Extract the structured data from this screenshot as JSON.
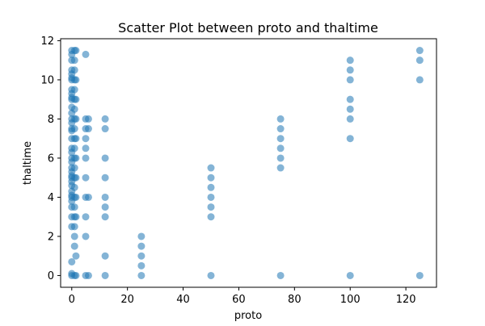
{
  "chart_data": {
    "type": "scatter",
    "title": "Scatter Plot between proto and thaltime",
    "xlabel": "proto",
    "ylabel": "thaltime",
    "xlim": [
      -4,
      131
    ],
    "ylim": [
      -0.6,
      12.1
    ],
    "xticks": [
      0,
      20,
      40,
      60,
      80,
      100,
      120
    ],
    "yticks": [
      0,
      2,
      4,
      6,
      8,
      10,
      12
    ],
    "grid": false,
    "marker_color": "#1f77b4",
    "marker_alpha": 0.55,
    "series": [
      {
        "points": [
          [
            0,
            0
          ],
          [
            0,
            0.1
          ],
          [
            0,
            0.7
          ],
          [
            0,
            2.5
          ],
          [
            0,
            3
          ],
          [
            0,
            3.5
          ],
          [
            0,
            3.8
          ],
          [
            0,
            4
          ],
          [
            0,
            4.1
          ],
          [
            0,
            4.3
          ],
          [
            0,
            4.6
          ],
          [
            0,
            4.8
          ],
          [
            0,
            5
          ],
          [
            0,
            5.1
          ],
          [
            0,
            5.3
          ],
          [
            0,
            5.5
          ],
          [
            0,
            5.8
          ],
          [
            0,
            6
          ],
          [
            0,
            6.3
          ],
          [
            0,
            6.5
          ],
          [
            0,
            7
          ],
          [
            0,
            7.4
          ],
          [
            0,
            7.5
          ],
          [
            0,
            7.8
          ],
          [
            0,
            8
          ],
          [
            0,
            8.3
          ],
          [
            0,
            8.6
          ],
          [
            0,
            9
          ],
          [
            0,
            9.1
          ],
          [
            0,
            9.3
          ],
          [
            0,
            9.5
          ],
          [
            0,
            10
          ],
          [
            0,
            10.1
          ],
          [
            0,
            10.3
          ],
          [
            0,
            10.5
          ],
          [
            0,
            11
          ],
          [
            0,
            11.3
          ],
          [
            0,
            11.5
          ],
          [
            1,
            0
          ],
          [
            1,
            1.5
          ],
          [
            1,
            2
          ],
          [
            1,
            2.5
          ],
          [
            1,
            3
          ],
          [
            1,
            3.5
          ],
          [
            1,
            4
          ],
          [
            1,
            4.5
          ],
          [
            1,
            5
          ],
          [
            1,
            5.5
          ],
          [
            1,
            6
          ],
          [
            1,
            6.5
          ],
          [
            1,
            7
          ],
          [
            1,
            7.5
          ],
          [
            1,
            8
          ],
          [
            1,
            8.5
          ],
          [
            1,
            9
          ],
          [
            1,
            9.5
          ],
          [
            1,
            10
          ],
          [
            1,
            10.5
          ],
          [
            1,
            11
          ],
          [
            1,
            11.5
          ],
          [
            1.5,
            0
          ],
          [
            1.5,
            1
          ],
          [
            1.5,
            3
          ],
          [
            1.5,
            4
          ],
          [
            1.5,
            5
          ],
          [
            1.5,
            6
          ],
          [
            1.5,
            7
          ],
          [
            1.5,
            8
          ],
          [
            1.5,
            9
          ],
          [
            1.5,
            10
          ],
          [
            1.5,
            11.5
          ],
          [
            5,
            0
          ],
          [
            5,
            2
          ],
          [
            5,
            3
          ],
          [
            5,
            4
          ],
          [
            5,
            5
          ],
          [
            5,
            6
          ],
          [
            5,
            6.5
          ],
          [
            5,
            7
          ],
          [
            5,
            7.5
          ],
          [
            5,
            8
          ],
          [
            5,
            11.3
          ],
          [
            6,
            0
          ],
          [
            6,
            4
          ],
          [
            6,
            7.5
          ],
          [
            6,
            8
          ],
          [
            12,
            0
          ],
          [
            12,
            1
          ],
          [
            12,
            3
          ],
          [
            12,
            3.5
          ],
          [
            12,
            4
          ],
          [
            12,
            5
          ],
          [
            12,
            6
          ],
          [
            12,
            7.5
          ],
          [
            12,
            8
          ],
          [
            25,
            0
          ],
          [
            25,
            0.5
          ],
          [
            25,
            1
          ],
          [
            25,
            1.5
          ],
          [
            25,
            2
          ],
          [
            50,
            0
          ],
          [
            50,
            3
          ],
          [
            50,
            3.5
          ],
          [
            50,
            4
          ],
          [
            50,
            4.5
          ],
          [
            50,
            5
          ],
          [
            50,
            5.5
          ],
          [
            75,
            0
          ],
          [
            75,
            5.5
          ],
          [
            75,
            6
          ],
          [
            75,
            6.5
          ],
          [
            75,
            7
          ],
          [
            75,
            7.5
          ],
          [
            75,
            8
          ],
          [
            100,
            0
          ],
          [
            100,
            7
          ],
          [
            100,
            8
          ],
          [
            100,
            8.5
          ],
          [
            100,
            9
          ],
          [
            100,
            10
          ],
          [
            100,
            10.5
          ],
          [
            100,
            11
          ],
          [
            125,
            0
          ],
          [
            125,
            10
          ],
          [
            125,
            11
          ],
          [
            125,
            11.5
          ]
        ]
      }
    ]
  }
}
